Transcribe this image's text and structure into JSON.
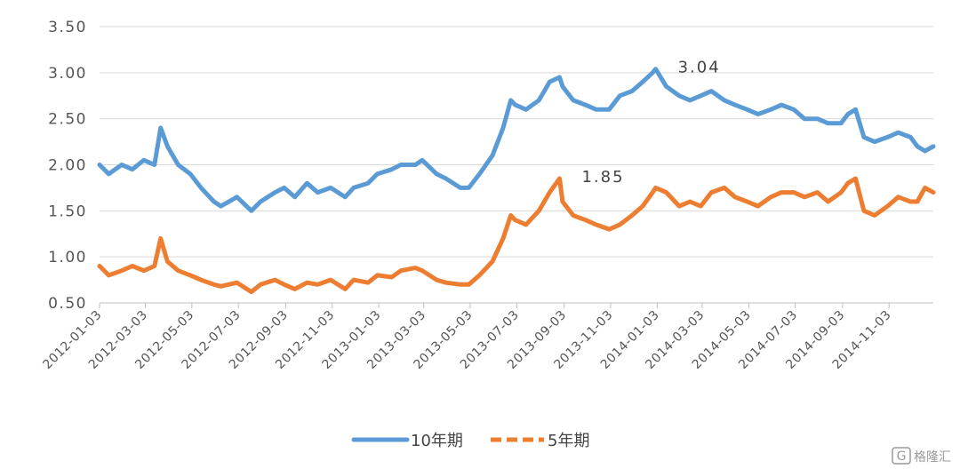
{
  "chart_data": {
    "type": "line",
    "ylim": [
      0.5,
      3.5
    ],
    "yticks": [
      "0.50",
      "1.00",
      "1.50",
      "2.00",
      "2.50",
      "3.00",
      "3.50"
    ],
    "xlim": [
      "2012-01-03",
      "2014-12-31"
    ],
    "xticks": [
      "2012-01-03",
      "2012-03-03",
      "2012-05-03",
      "2012-07-03",
      "2012-09-03",
      "2012-11-03",
      "2013-01-03",
      "2013-03-03",
      "2013-05-03",
      "2013-07-03",
      "2013-09-03",
      "2013-11-03",
      "2014-01-03",
      "2014-03-03",
      "2014-05-03",
      "2014-07-03",
      "2014-09-03",
      "2014-11-03"
    ],
    "grid": "horizontal",
    "legend_position": "bottom",
    "series": [
      {
        "name": "10年期",
        "color": "#5B9BD5",
        "x": [
          "2012-01-03",
          "2012-01-15",
          "2012-02-01",
          "2012-02-15",
          "2012-03-01",
          "2012-03-15",
          "2012-03-23",
          "2012-04-01",
          "2012-04-15",
          "2012-05-01",
          "2012-05-15",
          "2012-06-01",
          "2012-06-10",
          "2012-07-01",
          "2012-07-20",
          "2012-08-01",
          "2012-08-20",
          "2012-09-01",
          "2012-09-15",
          "2012-10-01",
          "2012-10-15",
          "2012-11-01",
          "2012-11-20",
          "2012-12-01",
          "2012-12-20",
          "2013-01-01",
          "2013-01-20",
          "2013-02-01",
          "2013-02-20",
          "2013-03-01",
          "2013-03-20",
          "2013-04-01",
          "2013-04-20",
          "2013-05-01",
          "2013-05-15",
          "2013-06-01",
          "2013-06-15",
          "2013-06-25",
          "2013-07-01",
          "2013-07-15",
          "2013-08-01",
          "2013-08-15",
          "2013-08-28",
          "2013-09-01",
          "2013-09-15",
          "2013-10-01",
          "2013-10-15",
          "2013-11-01",
          "2013-11-15",
          "2013-12-01",
          "2013-12-15",
          "2013-12-28",
          "2014-01-01",
          "2014-01-15",
          "2014-02-01",
          "2014-02-15",
          "2014-03-01",
          "2014-03-15",
          "2014-04-01",
          "2014-04-15",
          "2014-05-01",
          "2014-05-15",
          "2014-06-01",
          "2014-06-15",
          "2014-07-01",
          "2014-07-15",
          "2014-08-01",
          "2014-08-15",
          "2014-09-01",
          "2014-09-10",
          "2014-09-20",
          "2014-10-01",
          "2014-10-15",
          "2014-11-01",
          "2014-11-15",
          "2014-12-01",
          "2014-12-10",
          "2014-12-20",
          "2014-12-31"
        ],
        "values": [
          2.0,
          1.9,
          2.0,
          1.95,
          2.05,
          2.0,
          2.4,
          2.2,
          2.0,
          1.9,
          1.75,
          1.6,
          1.55,
          1.65,
          1.5,
          1.6,
          1.7,
          1.75,
          1.65,
          1.8,
          1.7,
          1.75,
          1.65,
          1.75,
          1.8,
          1.9,
          1.95,
          2.0,
          2.0,
          2.05,
          1.9,
          1.85,
          1.75,
          1.75,
          1.9,
          2.1,
          2.4,
          2.7,
          2.65,
          2.6,
          2.7,
          2.9,
          2.95,
          2.85,
          2.7,
          2.65,
          2.6,
          2.6,
          2.75,
          2.8,
          2.9,
          3.0,
          3.04,
          2.85,
          2.75,
          2.7,
          2.75,
          2.8,
          2.7,
          2.65,
          2.6,
          2.55,
          2.6,
          2.65,
          2.6,
          2.5,
          2.5,
          2.45,
          2.45,
          2.55,
          2.6,
          2.3,
          2.25,
          2.3,
          2.35,
          2.3,
          2.2,
          2.15,
          2.2
        ]
      },
      {
        "name": "5年期",
        "color": "#ED7D31",
        "x": [
          "2012-01-03",
          "2012-01-15",
          "2012-02-01",
          "2012-02-15",
          "2012-03-01",
          "2012-03-15",
          "2012-03-23",
          "2012-04-01",
          "2012-04-15",
          "2012-05-01",
          "2012-05-15",
          "2012-06-01",
          "2012-06-10",
          "2012-07-01",
          "2012-07-20",
          "2012-08-01",
          "2012-08-20",
          "2012-09-01",
          "2012-09-15",
          "2012-10-01",
          "2012-10-15",
          "2012-11-01",
          "2012-11-20",
          "2012-12-01",
          "2012-12-20",
          "2013-01-01",
          "2013-01-20",
          "2013-02-01",
          "2013-02-20",
          "2013-03-01",
          "2013-03-20",
          "2013-04-01",
          "2013-04-20",
          "2013-05-01",
          "2013-05-15",
          "2013-06-01",
          "2013-06-15",
          "2013-06-25",
          "2013-07-01",
          "2013-07-15",
          "2013-08-01",
          "2013-08-15",
          "2013-08-28",
          "2013-09-01",
          "2013-09-15",
          "2013-10-01",
          "2013-10-15",
          "2013-11-01",
          "2013-11-15",
          "2013-12-01",
          "2013-12-15",
          "2013-12-28",
          "2014-01-01",
          "2014-01-15",
          "2014-02-01",
          "2014-02-15",
          "2014-03-01",
          "2014-03-15",
          "2014-04-01",
          "2014-04-15",
          "2014-05-01",
          "2014-05-15",
          "2014-06-01",
          "2014-06-15",
          "2014-07-01",
          "2014-07-15",
          "2014-08-01",
          "2014-08-15",
          "2014-09-01",
          "2014-09-10",
          "2014-09-20",
          "2014-10-01",
          "2014-10-15",
          "2014-11-01",
          "2014-11-15",
          "2014-12-01",
          "2014-12-10",
          "2014-12-20",
          "2014-12-31"
        ],
        "values": [
          0.9,
          0.8,
          0.85,
          0.9,
          0.85,
          0.9,
          1.2,
          0.95,
          0.85,
          0.8,
          0.75,
          0.7,
          0.68,
          0.72,
          0.62,
          0.7,
          0.75,
          0.7,
          0.65,
          0.72,
          0.7,
          0.75,
          0.65,
          0.75,
          0.72,
          0.8,
          0.78,
          0.85,
          0.88,
          0.85,
          0.75,
          0.72,
          0.7,
          0.7,
          0.8,
          0.95,
          1.2,
          1.45,
          1.4,
          1.35,
          1.5,
          1.7,
          1.85,
          1.6,
          1.45,
          1.4,
          1.35,
          1.3,
          1.35,
          1.45,
          1.55,
          1.7,
          1.75,
          1.7,
          1.55,
          1.6,
          1.55,
          1.7,
          1.75,
          1.65,
          1.6,
          1.55,
          1.65,
          1.7,
          1.7,
          1.65,
          1.7,
          1.6,
          1.7,
          1.8,
          1.85,
          1.5,
          1.45,
          1.55,
          1.65,
          1.6,
          1.6,
          1.75,
          1.7
        ]
      }
    ],
    "annotations": [
      {
        "text": "3.04",
        "x": "2014-01-01",
        "y": 3.04,
        "series": "10年期"
      },
      {
        "text": "1.85",
        "x": "2013-08-28",
        "y": 1.85,
        "series": "5年期"
      }
    ]
  },
  "watermark": "格隆汇"
}
